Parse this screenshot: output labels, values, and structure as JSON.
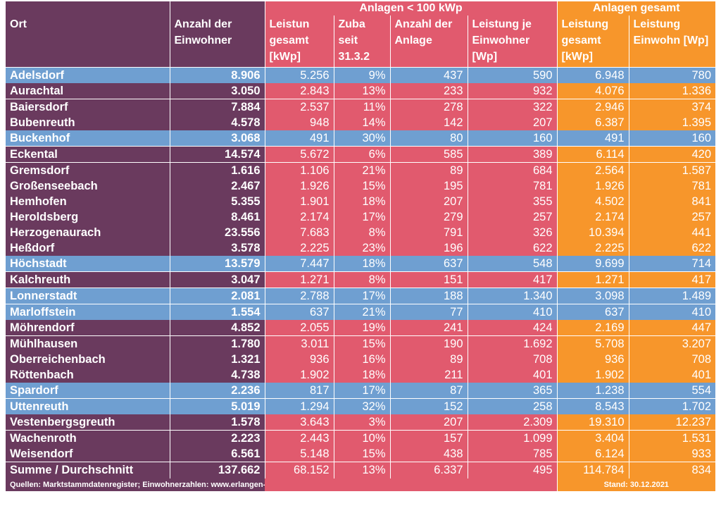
{
  "header": {
    "group_small": "Anlagen < 100 kWp",
    "group_total": "Anlagen gesamt",
    "col_ort": "Ort",
    "col_einwohner": "Anzahl der Einwohner",
    "col_leistung_gesamt": "Leistun gesamt [kWp]",
    "col_zubau": "Zuba seit 31.3.2",
    "col_anzahl_anlagen": "Anzahl der Anlage",
    "col_leistung_je_einwohner": "Leistung je Einwohner [Wp]",
    "col_total_leistung": "Leistung gesamt [kWp]",
    "col_total_leistung_einwohner": "Leistung Einwohn [Wp]"
  },
  "rows": [
    {
      "ort": "Adelsdorf",
      "einwohner": "8.906",
      "leistung": "5.256",
      "zubau": "9%",
      "anzahl": "437",
      "je_einwohner": "590",
      "ges_leistung": "6.948",
      "ges_einwohner": "780",
      "highlight": true
    },
    {
      "ort": "Aurachtal",
      "einwohner": "3.050",
      "leistung": "2.843",
      "zubau": "13%",
      "anzahl": "233",
      "je_einwohner": "932",
      "ges_leistung": "4.076",
      "ges_einwohner": "1.336",
      "highlight": false
    },
    {
      "ort": "Baiersdorf",
      "einwohner": "7.884",
      "leistung": "2.537",
      "zubau": "11%",
      "anzahl": "278",
      "je_einwohner": "322",
      "ges_leistung": "2.946",
      "ges_einwohner": "374",
      "highlight": false
    },
    {
      "ort": "Bubenreuth",
      "einwohner": "4.578",
      "leistung": "948",
      "zubau": "14%",
      "anzahl": "142",
      "je_einwohner": "207",
      "ges_leistung": "6.387",
      "ges_einwohner": "1.395",
      "highlight": false
    },
    {
      "ort": "Buckenhof",
      "einwohner": "3.068",
      "leistung": "491",
      "zubau": "30%",
      "anzahl": "80",
      "je_einwohner": "160",
      "ges_leistung": "491",
      "ges_einwohner": "160",
      "highlight": true
    },
    {
      "ort": "Eckental",
      "einwohner": "14.574",
      "leistung": "5.672",
      "zubau": "6%",
      "anzahl": "585",
      "je_einwohner": "389",
      "ges_leistung": "6.114",
      "ges_einwohner": "420",
      "highlight": false
    },
    {
      "ort": "Gremsdorf",
      "einwohner": "1.616",
      "leistung": "1.106",
      "zubau": "21%",
      "anzahl": "89",
      "je_einwohner": "684",
      "ges_leistung": "2.564",
      "ges_einwohner": "1.587",
      "highlight": false
    },
    {
      "ort": "Großenseebach",
      "einwohner": "2.467",
      "leistung": "1.926",
      "zubau": "15%",
      "anzahl": "195",
      "je_einwohner": "781",
      "ges_leistung": "1.926",
      "ges_einwohner": "781",
      "highlight": false
    },
    {
      "ort": "Hemhofen",
      "einwohner": "5.355",
      "leistung": "1.901",
      "zubau": "18%",
      "anzahl": "207",
      "je_einwohner": "355",
      "ges_leistung": "4.502",
      "ges_einwohner": "841",
      "highlight": false
    },
    {
      "ort": "Heroldsberg",
      "einwohner": "8.461",
      "leistung": "2.174",
      "zubau": "17%",
      "anzahl": "279",
      "je_einwohner": "257",
      "ges_leistung": "2.174",
      "ges_einwohner": "257",
      "highlight": false
    },
    {
      "ort": "Herzogenaurach",
      "einwohner": "23.556",
      "leistung": "7.683",
      "zubau": "8%",
      "anzahl": "791",
      "je_einwohner": "326",
      "ges_leistung": "10.394",
      "ges_einwohner": "441",
      "highlight": false
    },
    {
      "ort": "Heßdorf",
      "einwohner": "3.578",
      "leistung": "2.225",
      "zubau": "23%",
      "anzahl": "196",
      "je_einwohner": "622",
      "ges_leistung": "2.225",
      "ges_einwohner": "622",
      "highlight": false
    },
    {
      "ort": "Höchstadt",
      "einwohner": "13.579",
      "leistung": "7.447",
      "zubau": "18%",
      "anzahl": "637",
      "je_einwohner": "548",
      "ges_leistung": "9.699",
      "ges_einwohner": "714",
      "highlight": true
    },
    {
      "ort": "Kalchreuth",
      "einwohner": "3.047",
      "leistung": "1.271",
      "zubau": "8%",
      "anzahl": "151",
      "je_einwohner": "417",
      "ges_leistung": "1.271",
      "ges_einwohner": "417",
      "highlight": false
    },
    {
      "ort": "Lonnerstadt",
      "einwohner": "2.081",
      "leistung": "2.788",
      "zubau": "17%",
      "anzahl": "188",
      "je_einwohner": "1.340",
      "ges_leistung": "3.098",
      "ges_einwohner": "1.489",
      "highlight": true
    },
    {
      "ort": "Marloffstein",
      "einwohner": "1.554",
      "leistung": "637",
      "zubau": "21%",
      "anzahl": "77",
      "je_einwohner": "410",
      "ges_leistung": "637",
      "ges_einwohner": "410",
      "highlight": true
    },
    {
      "ort": "Möhrendorf",
      "einwohner": "4.852",
      "leistung": "2.055",
      "zubau": "19%",
      "anzahl": "241",
      "je_einwohner": "424",
      "ges_leistung": "2.169",
      "ges_einwohner": "447",
      "highlight": false
    },
    {
      "ort": "Mühlhausen",
      "einwohner": "1.780",
      "leistung": "3.011",
      "zubau": "15%",
      "anzahl": "190",
      "je_einwohner": "1.692",
      "ges_leistung": "5.708",
      "ges_einwohner": "3.207",
      "highlight": false
    },
    {
      "ort": "Oberreichenbach",
      "einwohner": "1.321",
      "leistung": "936",
      "zubau": "16%",
      "anzahl": "89",
      "je_einwohner": "708",
      "ges_leistung": "936",
      "ges_einwohner": "708",
      "highlight": false
    },
    {
      "ort": "Röttenbach",
      "einwohner": "4.738",
      "leistung": "1.902",
      "zubau": "18%",
      "anzahl": "211",
      "je_einwohner": "401",
      "ges_leistung": "1.902",
      "ges_einwohner": "401",
      "highlight": false
    },
    {
      "ort": "Spardorf",
      "einwohner": "2.236",
      "leistung": "817",
      "zubau": "17%",
      "anzahl": "87",
      "je_einwohner": "365",
      "ges_leistung": "1.238",
      "ges_einwohner": "554",
      "highlight": true
    },
    {
      "ort": "Uttenreuth",
      "einwohner": "5.019",
      "leistung": "1.294",
      "zubau": "32%",
      "anzahl": "152",
      "je_einwohner": "258",
      "ges_leistung": "8.543",
      "ges_einwohner": "1.702",
      "highlight": true
    },
    {
      "ort": "Vestenbergsgreuth",
      "einwohner": "1.578",
      "leistung": "3.643",
      "zubau": "3%",
      "anzahl": "207",
      "je_einwohner": "2.309",
      "ges_leistung": "19.310",
      "ges_einwohner": "12.237",
      "highlight": false
    },
    {
      "ort": "Wachenroth",
      "einwohner": "2.223",
      "leistung": "2.443",
      "zubau": "10%",
      "anzahl": "157",
      "je_einwohner": "1.099",
      "ges_leistung": "3.404",
      "ges_einwohner": "1.531",
      "highlight": false
    },
    {
      "ort": "Weisendorf",
      "einwohner": "6.561",
      "leistung": "5.148",
      "zubau": "15%",
      "anzahl": "438",
      "je_einwohner": "785",
      "ges_leistung": "6.124",
      "ges_einwohner": "933",
      "highlight": false
    }
  ],
  "summary": {
    "ort": "Summe / Durchschnitt",
    "einwohner": "137.662",
    "leistung": "68.152",
    "zubau": "13%",
    "anzahl": "6.337",
    "je_einwohner": "495",
    "ges_leistung": "114.784",
    "ges_einwohner": "834"
  },
  "footer": {
    "sources": "Quellen: Marktstammdatenregister; Einwohnerzahlen: www.erlangen-hoechstadt.de",
    "stand": "Stand: 30.12.2021"
  },
  "colors": {
    "dark": "#6a3a5e",
    "red": "#e15a6e",
    "orange": "#f7962b",
    "blue": "#6f9fd1"
  }
}
